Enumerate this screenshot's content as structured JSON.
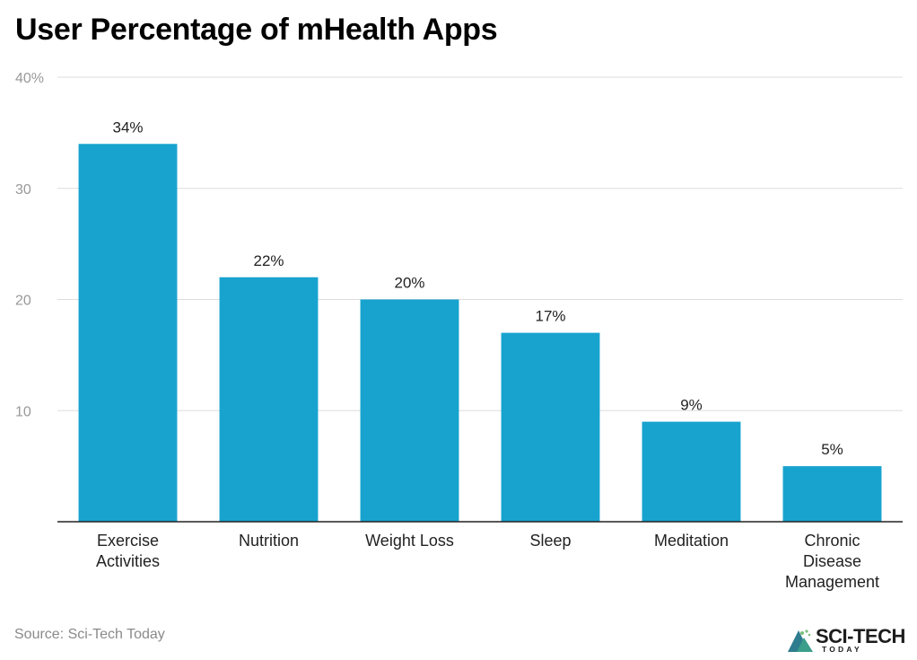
{
  "chart_data": {
    "type": "bar",
    "title": "User Percentage of mHealth Apps",
    "categories": [
      [
        "Exercise",
        "Activities"
      ],
      [
        "Nutrition"
      ],
      [
        "Weight Loss"
      ],
      [
        "Sleep"
      ],
      [
        "Meditation"
      ],
      [
        "Chronic",
        "Disease",
        "Management"
      ]
    ],
    "values": [
      34,
      22,
      20,
      17,
      9,
      5
    ],
    "data_labels": [
      "34%",
      "22%",
      "20%",
      "17%",
      "9%",
      "5%"
    ],
    "yticks": [
      {
        "value": 10,
        "label": "10"
      },
      {
        "value": 20,
        "label": "20"
      },
      {
        "value": 30,
        "label": "30"
      },
      {
        "value": 40,
        "label": "40%"
      }
    ],
    "ylim": [
      0,
      40
    ],
    "grid": true,
    "bar_color": "#18a3cf"
  },
  "source": "Source: Sci-Tech Today",
  "logo": {
    "name": "SCI-TECH",
    "sub": "TODAY",
    "colors": [
      "#2e7d8f",
      "#3a9e8a",
      "#7cc07a",
      "#1d1d1d"
    ]
  }
}
